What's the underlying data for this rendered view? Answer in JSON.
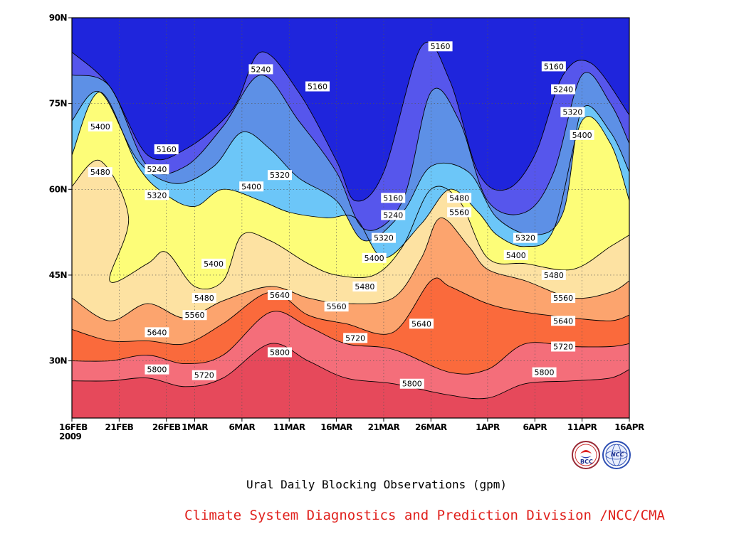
{
  "chart_data": {
    "type": "contour",
    "title": "",
    "xlabel": "",
    "ylabel": "",
    "x_ticks": [
      "16FEB\n2009",
      "21FEB",
      "26FEB",
      "1MAR",
      "6MAR",
      "11MAR",
      "16MAR",
      "21MAR",
      "26MAR",
      "1APR",
      "6APR",
      "11APR",
      "16APR"
    ],
    "y_ticks": [
      "30N",
      "45N",
      "60N",
      "75N",
      "90N"
    ],
    "ylim_deg": [
      20,
      90
    ],
    "xlim_days": [
      0,
      59
    ],
    "contour_levels_gpm": [
      5160,
      5240,
      5320,
      5400,
      5480,
      5560,
      5640,
      5720,
      5800
    ],
    "level_colors": [
      "#e6495b",
      "#f46e7a",
      "#fa6a3c",
      "#fca46e",
      "#fde2a2",
      "#fdfd78",
      "#6cc6f8",
      "#5d90e6",
      "#5656ec",
      "#1f25dc",
      "#121670"
    ],
    "contour_lines": [
      {
        "level": 5800,
        "points": [
          [
            0,
            26.5
          ],
          [
            4,
            26.5
          ],
          [
            8,
            27
          ],
          [
            12,
            25.5
          ],
          [
            16,
            27
          ],
          [
            21,
            33
          ],
          [
            25,
            30
          ],
          [
            29,
            27
          ],
          [
            34,
            26
          ],
          [
            40,
            24
          ],
          [
            44,
            23.5
          ],
          [
            48,
            26
          ],
          [
            53,
            26.5
          ],
          [
            57,
            27
          ],
          [
            59,
            28.5
          ]
        ]
      },
      {
        "level": 5720,
        "points": [
          [
            0,
            30
          ],
          [
            4,
            30
          ],
          [
            8,
            31
          ],
          [
            12,
            29.5
          ],
          [
            16,
            31
          ],
          [
            21,
            38.5
          ],
          [
            25,
            36
          ],
          [
            29,
            33
          ],
          [
            34,
            32
          ],
          [
            40,
            28
          ],
          [
            44,
            28.5
          ],
          [
            48,
            33
          ],
          [
            53,
            32.5
          ],
          [
            57,
            32.5
          ],
          [
            59,
            33
          ]
        ]
      },
      {
        "level": 5640,
        "points": [
          [
            0,
            35.5
          ],
          [
            4,
            33.5
          ],
          [
            8,
            33.5
          ],
          [
            12,
            33
          ],
          [
            16,
            36.5
          ],
          [
            21,
            42
          ],
          [
            25,
            38
          ],
          [
            29,
            36.5
          ],
          [
            34,
            35
          ],
          [
            38,
            44
          ],
          [
            40,
            43
          ],
          [
            44,
            40
          ],
          [
            48,
            38.5
          ],
          [
            53,
            37.5
          ],
          [
            57,
            37
          ],
          [
            59,
            38
          ]
        ]
      },
      {
        "level": 5560,
        "points": [
          [
            0,
            41
          ],
          [
            4,
            37
          ],
          [
            8,
            40
          ],
          [
            12,
            37.5
          ],
          [
            16,
            40.5
          ],
          [
            21,
            43
          ],
          [
            25,
            41
          ],
          [
            29,
            40
          ],
          [
            34,
            41
          ],
          [
            37,
            48
          ],
          [
            39,
            55
          ],
          [
            42,
            50
          ],
          [
            44,
            46
          ],
          [
            48,
            44
          ],
          [
            53,
            41
          ],
          [
            57,
            42
          ],
          [
            59,
            44
          ]
        ]
      },
      {
        "level": 5480,
        "points": [
          [
            0,
            60.5
          ],
          [
            3,
            65
          ],
          [
            6,
            55
          ],
          [
            4,
            44
          ],
          [
            8,
            47
          ],
          [
            10,
            49
          ],
          [
            13,
            43
          ],
          [
            16,
            44
          ],
          [
            18,
            52
          ],
          [
            21,
            51
          ],
          [
            25,
            47
          ],
          [
            28,
            45
          ],
          [
            32,
            45
          ],
          [
            35,
            50
          ],
          [
            38,
            60
          ],
          [
            41,
            58
          ],
          [
            44,
            48
          ],
          [
            48,
            47
          ],
          [
            53,
            46
          ],
          [
            57,
            50
          ],
          [
            59,
            52
          ]
        ]
      },
      {
        "level": 5400,
        "points": [
          [
            0,
            66
          ],
          [
            3,
            77
          ],
          [
            7,
            64
          ],
          [
            10,
            59
          ],
          [
            13,
            57
          ],
          [
            16,
            60
          ],
          [
            20,
            58
          ],
          [
            23,
            56
          ],
          [
            27,
            55
          ],
          [
            30,
            55
          ],
          [
            33,
            48
          ],
          [
            37,
            54
          ],
          [
            40,
            60
          ],
          [
            43,
            56
          ],
          [
            45,
            52
          ],
          [
            48,
            50
          ],
          [
            51,
            53
          ],
          [
            54,
            72
          ],
          [
            57,
            68
          ],
          [
            59,
            58
          ]
        ]
      },
      {
        "level": 5320,
        "points": [
          [
            0,
            72
          ],
          [
            3,
            77
          ],
          [
            7,
            65
          ],
          [
            11,
            61
          ],
          [
            15,
            64
          ],
          [
            18,
            70
          ],
          [
            21,
            67
          ],
          [
            24,
            62
          ],
          [
            28,
            58
          ],
          [
            31,
            51
          ],
          [
            35,
            56
          ],
          [
            38,
            64
          ],
          [
            42,
            63
          ],
          [
            45,
            55
          ],
          [
            49,
            52
          ],
          [
            52,
            56
          ],
          [
            54,
            74
          ],
          [
            57,
            70
          ],
          [
            59,
            63
          ]
        ]
      },
      {
        "level": 5240,
        "points": [
          [
            0,
            80
          ],
          [
            4,
            78
          ],
          [
            8,
            64
          ],
          [
            12,
            64
          ],
          [
            16,
            71
          ],
          [
            20,
            80
          ],
          [
            24,
            72
          ],
          [
            28,
            63
          ],
          [
            31,
            53
          ],
          [
            35,
            58
          ],
          [
            38,
            77
          ],
          [
            41,
            72
          ],
          [
            44,
            58
          ],
          [
            48,
            56
          ],
          [
            51,
            63
          ],
          [
            54,
            80
          ],
          [
            57,
            75
          ],
          [
            59,
            68
          ]
        ]
      },
      {
        "level": 5160,
        "points": [
          [
            0,
            84
          ],
          [
            4,
            78
          ],
          [
            8,
            66
          ],
          [
            12,
            67
          ],
          [
            17,
            74
          ],
          [
            20,
            84
          ],
          [
            24,
            77
          ],
          [
            28,
            65
          ],
          [
            30,
            58
          ],
          [
            33,
            63
          ],
          [
            37,
            85
          ],
          [
            40,
            79
          ],
          [
            43,
            63
          ],
          [
            46,
            60
          ],
          [
            49,
            66
          ],
          [
            52,
            80
          ],
          [
            55,
            82
          ],
          [
            59,
            73
          ]
        ]
      }
    ],
    "contour_labels": [
      {
        "text": "5400",
        "x": 3,
        "y": 71
      },
      {
        "text": "5480",
        "x": 3,
        "y": 63
      },
      {
        "text": "5160",
        "x": 10,
        "y": 67
      },
      {
        "text": "5240",
        "x": 9,
        "y": 63.5
      },
      {
        "text": "5320",
        "x": 9,
        "y": 59
      },
      {
        "text": "5400",
        "x": 15,
        "y": 47
      },
      {
        "text": "5480",
        "x": 14,
        "y": 41
      },
      {
        "text": "5560",
        "x": 13,
        "y": 38
      },
      {
        "text": "5640",
        "x": 9,
        "y": 35
      },
      {
        "text": "5720",
        "x": 14,
        "y": 27.5
      },
      {
        "text": "5800",
        "x": 9,
        "y": 28.5
      },
      {
        "text": "5240",
        "x": 20,
        "y": 81
      },
      {
        "text": "5400",
        "x": 19,
        "y": 60.5
      },
      {
        "text": "5320",
        "x": 22,
        "y": 62.5
      },
      {
        "text": "5160",
        "x": 26,
        "y": 78
      },
      {
        "text": "5640",
        "x": 22,
        "y": 41.5
      },
      {
        "text": "5800",
        "x": 22,
        "y": 31.5
      },
      {
        "text": "5560",
        "x": 28,
        "y": 39.5
      },
      {
        "text": "5480",
        "x": 31,
        "y": 43
      },
      {
        "text": "5720",
        "x": 30,
        "y": 34
      },
      {
        "text": "5400",
        "x": 32,
        "y": 48
      },
      {
        "text": "5320",
        "x": 33,
        "y": 51.5
      },
      {
        "text": "5240",
        "x": 34,
        "y": 55.5
      },
      {
        "text": "5160",
        "x": 34,
        "y": 58.5
      },
      {
        "text": "5640",
        "x": 37,
        "y": 36.5
      },
      {
        "text": "5800",
        "x": 36,
        "y": 26
      },
      {
        "text": "5160",
        "x": 39,
        "y": 85
      },
      {
        "text": "5480",
        "x": 41,
        "y": 58.5
      },
      {
        "text": "5560",
        "x": 41,
        "y": 56
      },
      {
        "text": "5320",
        "x": 48,
        "y": 51.5
      },
      {
        "text": "5400",
        "x": 47,
        "y": 48.5
      },
      {
        "text": "5160",
        "x": 51,
        "y": 81.5
      },
      {
        "text": "5240",
        "x": 52,
        "y": 77.5
      },
      {
        "text": "5320",
        "x": 53,
        "y": 73.5
      },
      {
        "text": "5400",
        "x": 54,
        "y": 69.5
      },
      {
        "text": "5480",
        "x": 51,
        "y": 45
      },
      {
        "text": "5560",
        "x": 52,
        "y": 41
      },
      {
        "text": "5640",
        "x": 52,
        "y": 37
      },
      {
        "text": "5720",
        "x": 52,
        "y": 32.5
      },
      {
        "text": "5800",
        "x": 50,
        "y": 28
      }
    ]
  },
  "caption": {
    "title": "Ural Daily Blocking Observations (gpm)",
    "credit": "Climate System Diagnostics and Prediction Division /NCC/CMA"
  },
  "logos": {
    "bcc_text": "BCC",
    "ncc_text": "NCC"
  }
}
